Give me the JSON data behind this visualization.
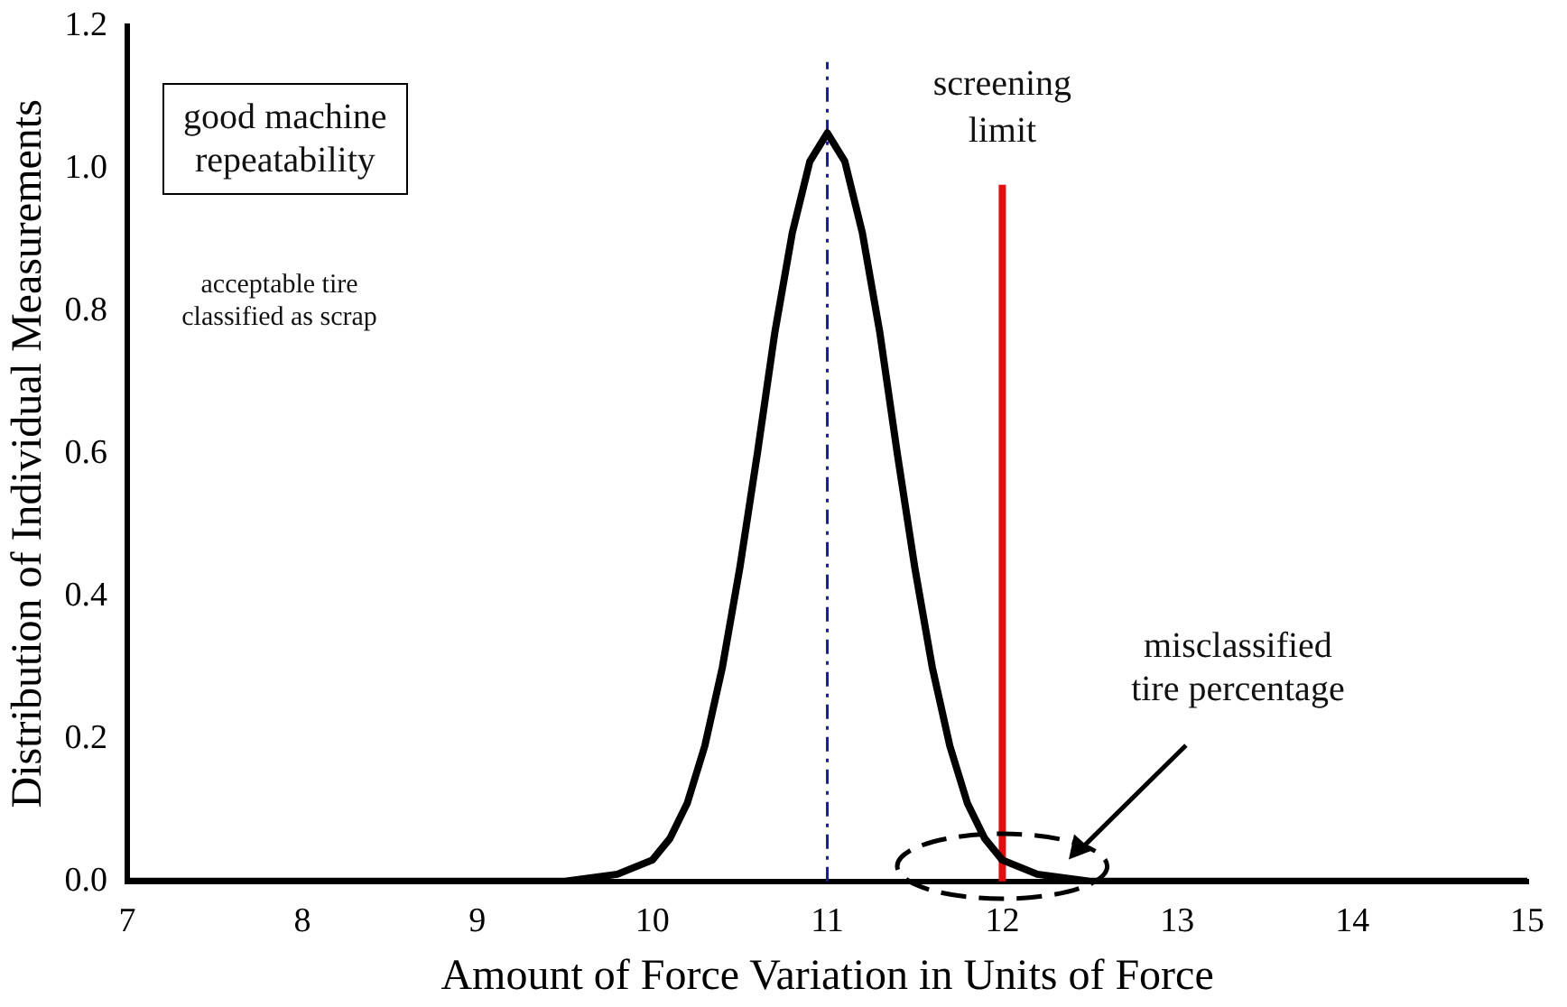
{
  "chart_data": {
    "type": "line",
    "xlabel": "Amount of Force Variation in Units of Force",
    "ylabel": "Distribution of Individual Measurements",
    "x": [
      7,
      9.5,
      9.8,
      10,
      10.1,
      10.2,
      10.3,
      10.4,
      10.5,
      10.6,
      10.7,
      10.8,
      10.9,
      11,
      11.1,
      11.2,
      11.3,
      11.4,
      11.5,
      11.6,
      11.7,
      11.8,
      11.9,
      12,
      12.2,
      12.5,
      15
    ],
    "series": [
      {
        "color": "#000000",
        "values": [
          0,
          0,
          0.01,
          0.03,
          0.06,
          0.11,
          0.19,
          0.3,
          0.44,
          0.6,
          0.77,
          0.91,
          1.01,
          1.05,
          1.01,
          0.91,
          0.77,
          0.6,
          0.44,
          0.3,
          0.19,
          0.11,
          0.06,
          0.03,
          0.01,
          0,
          0
        ]
      }
    ],
    "xlim": [
      7,
      15
    ],
    "xticks": [
      7,
      8,
      9,
      10,
      11,
      12,
      13,
      14,
      15
    ],
    "ylim": [
      0,
      1.2
    ],
    "yticks": [
      {
        "value": 0,
        "label": "0.0"
      },
      0.2,
      0.4,
      0.6,
      0.8,
      {
        "value": 1,
        "label": "1.0"
      },
      1.2
    ],
    "ref_lines": [
      {
        "axis": "x",
        "value": 11,
        "color": "#1a1aa0",
        "line_style": "dashed"
      },
      {
        "axis": "x",
        "value": 12,
        "label": "screening limit",
        "color": "#e01010",
        "line_style": "solid"
      }
    ],
    "annotations": [
      "good machine repeatability",
      "acceptable tire classified as scrap",
      "misclassified tire percentage"
    ],
    "marker": "none",
    "line_style": "solid",
    "grid": false,
    "legend": false
  }
}
